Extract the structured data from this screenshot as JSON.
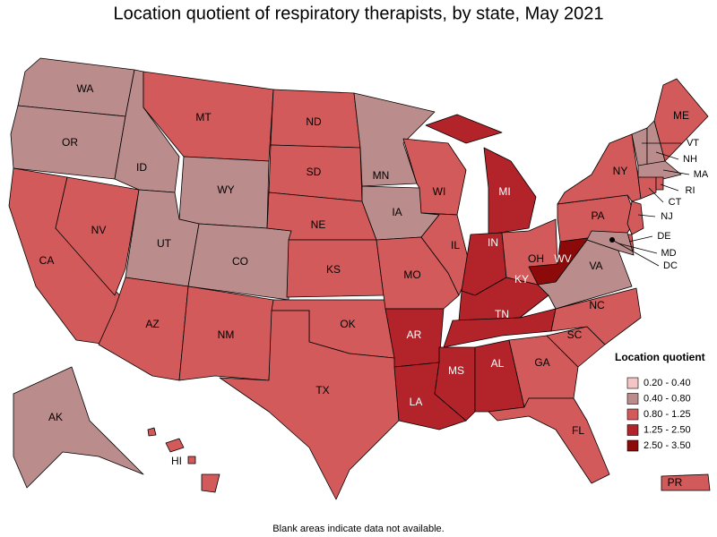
{
  "title": "Location quotient of respiratory therapists, by state, May 2021",
  "legend": {
    "title": "Location quotient",
    "items": [
      {
        "label": "0.20 - 0.40",
        "color": "#f5c4c4"
      },
      {
        "label": "0.40 - 0.80",
        "color": "#bb8c8c"
      },
      {
        "label": "0.80 - 1.25",
        "color": "#d35a5a"
      },
      {
        "label": "1.25 - 2.50",
        "color": "#b2232a"
      },
      {
        "label": "2.50 - 3.50",
        "color": "#8c0a0a"
      }
    ]
  },
  "states": [
    {
      "abbr": "WA",
      "class": 1
    },
    {
      "abbr": "OR",
      "class": 1
    },
    {
      "abbr": "CA",
      "class": 2
    },
    {
      "abbr": "NV",
      "class": 2
    },
    {
      "abbr": "ID",
      "class": 1
    },
    {
      "abbr": "MT",
      "class": 2
    },
    {
      "abbr": "WY",
      "class": 1
    },
    {
      "abbr": "UT",
      "class": 1
    },
    {
      "abbr": "CO",
      "class": 1
    },
    {
      "abbr": "AZ",
      "class": 2
    },
    {
      "abbr": "NM",
      "class": 2
    },
    {
      "abbr": "ND",
      "class": 2
    },
    {
      "abbr": "SD",
      "class": 2
    },
    {
      "abbr": "NE",
      "class": 2
    },
    {
      "abbr": "KS",
      "class": 2
    },
    {
      "abbr": "OK",
      "class": 2
    },
    {
      "abbr": "TX",
      "class": 2
    },
    {
      "abbr": "MN",
      "class": 1
    },
    {
      "abbr": "IA",
      "class": 1
    },
    {
      "abbr": "MO",
      "class": 2
    },
    {
      "abbr": "AR",
      "class": 3
    },
    {
      "abbr": "LA",
      "class": 3
    },
    {
      "abbr": "WI",
      "class": 2
    },
    {
      "abbr": "IL",
      "class": 2
    },
    {
      "abbr": "MI",
      "class": 3
    },
    {
      "abbr": "IN",
      "class": 3
    },
    {
      "abbr": "OH",
      "class": 2
    },
    {
      "abbr": "KY",
      "class": 3
    },
    {
      "abbr": "TN",
      "class": 3
    },
    {
      "abbr": "MS",
      "class": 3
    },
    {
      "abbr": "AL",
      "class": 3
    },
    {
      "abbr": "GA",
      "class": 2
    },
    {
      "abbr": "FL",
      "class": 2
    },
    {
      "abbr": "SC",
      "class": 2
    },
    {
      "abbr": "NC",
      "class": 2
    },
    {
      "abbr": "VA",
      "class": 1
    },
    {
      "abbr": "WV",
      "class": 4
    },
    {
      "abbr": "PA",
      "class": 2
    },
    {
      "abbr": "NY",
      "class": 2
    },
    {
      "abbr": "NJ",
      "class": 2
    },
    {
      "abbr": "DE",
      "class": 2
    },
    {
      "abbr": "MD",
      "class": 1
    },
    {
      "abbr": "DC",
      "class": 4
    },
    {
      "abbr": "VT",
      "class": 1
    },
    {
      "abbr": "NH",
      "class": 1
    },
    {
      "abbr": "MA",
      "class": 1
    },
    {
      "abbr": "CT",
      "class": 2
    },
    {
      "abbr": "RI",
      "class": 2
    },
    {
      "abbr": "ME",
      "class": 2
    },
    {
      "abbr": "AK",
      "class": 1
    },
    {
      "abbr": "HI",
      "class": 2
    },
    {
      "abbr": "PR",
      "class": 2
    }
  ],
  "footnote": "Blank areas indicate data not available."
}
